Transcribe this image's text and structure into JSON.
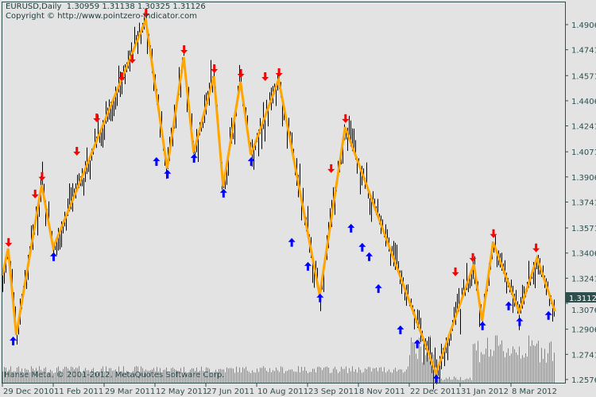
{
  "header": {
    "symbol_line": "EURUSD,Daily  1.30959 1.31138 1.30325 1.31126",
    "copyright_line": "Copyright © http://www.pointzero-indicator.com"
  },
  "footer": "Hanse Meta, © 2001-2012, MetaQuotes Software Corp.",
  "colors": {
    "background": "#e3e3e3",
    "axis": "#2f4f4f",
    "bars": "#000000",
    "zigzag": "#ffa500",
    "arrow_down": "#ff0000",
    "arrow_up": "#0000ff",
    "volume": "#778899",
    "price_box": "#2f4f4f"
  },
  "chart_data": {
    "type": "line",
    "title": "EURUSD,Daily",
    "last_bar": {
      "open": 1.30959,
      "high": 1.31138,
      "low": 1.30325,
      "close": 1.31126
    },
    "current_price_label": "1.31126",
    "y_ticks": [
      "1.49060",
      "1.47410",
      "1.45710",
      "1.44060",
      "1.42410",
      "1.40710",
      "1.39060",
      "1.37410",
      "1.35710",
      "1.34060",
      "1.32410",
      "1.30760",
      "1.29060",
      "1.27410",
      "1.25760"
    ],
    "x_ticks": [
      "29 Dec 2010",
      "11 Feb 2011",
      "29 Mar 2011",
      "12 May 2011",
      "27 Jun 2011",
      "10 Aug 2011",
      "23 Sep 2011",
      "8 Nov 2011",
      "22 Dec 2011",
      "31 Jan 2012",
      "8 Mar 2012"
    ],
    "ylim": [
      1.2576,
      1.506
    ],
    "grid": false,
    "zigzag": [
      [
        "2010-12-29",
        1.3259
      ],
      [
        "2011-01-03",
        1.3436
      ],
      [
        "2011-01-10",
        1.2868
      ],
      [
        "2011-02-01",
        1.3853
      ],
      [
        "2011-02-11",
        1.3441
      ],
      [
        "2011-05-04",
        1.4937
      ],
      [
        "2011-05-23",
        1.3962
      ],
      [
        "2011-06-07",
        1.4692
      ],
      [
        "2011-06-16",
        1.4067
      ],
      [
        "2011-07-04",
        1.4567
      ],
      [
        "2011-07-12",
        1.3843
      ],
      [
        "2011-07-27",
        1.4531
      ],
      [
        "2011-08-05",
        1.4051
      ],
      [
        "2011-08-29",
        1.4546
      ],
      [
        "2011-10-04",
        1.3128
      ],
      [
        "2011-10-27",
        1.4233
      ],
      [
        "2012-01-12",
        1.2617
      ],
      [
        "2012-02-10",
        1.3332
      ],
      [
        "2012-02-16",
        1.2961
      ],
      [
        "2012-02-24",
        1.3478
      ],
      [
        "2012-03-14",
        1.3019
      ],
      [
        "2012-03-27",
        1.3374
      ],
      [
        "2012-04-09",
        1.3024
      ]
    ],
    "down_arrows": [
      [
        "2011-01-03",
        1.3447
      ],
      [
        "2011-01-26",
        1.3765
      ],
      [
        "2011-02-01",
        1.388
      ],
      [
        "2011-03-04",
        1.4046
      ],
      [
        "2011-03-22",
        1.4265
      ],
      [
        "2011-04-13",
        1.4536
      ],
      [
        "2011-04-22",
        1.4651
      ],
      [
        "2011-05-04",
        1.4953
      ],
      [
        "2011-06-07",
        1.4713
      ],
      [
        "2011-07-04",
        1.4588
      ],
      [
        "2011-07-27",
        1.4557
      ],
      [
        "2011-08-17",
        1.4536
      ],
      [
        "2011-08-29",
        1.4562
      ],
      [
        "2011-10-14",
        1.3932
      ],
      [
        "2011-10-27",
        1.426
      ],
      [
        "2012-01-27",
        1.3254
      ],
      [
        "2012-02-09",
        1.3348
      ],
      [
        "2012-02-24",
        1.3505
      ],
      [
        "2012-03-26",
        1.3411
      ]
    ],
    "up_arrows": [
      [
        "2011-01-07",
        1.2858
      ],
      [
        "2011-02-11",
        1.3411
      ],
      [
        "2011-05-13",
        1.4036
      ],
      [
        "2011-05-23",
        1.3953
      ],
      [
        "2011-06-16",
        1.4057
      ],
      [
        "2011-07-12",
        1.3828
      ],
      [
        "2011-08-05",
        1.4036
      ],
      [
        "2011-09-09",
        1.3505
      ],
      [
        "2011-09-23",
        1.3348
      ],
      [
        "2011-10-04",
        1.314
      ],
      [
        "2011-11-01",
        1.3598
      ],
      [
        "2011-11-11",
        1.3473
      ],
      [
        "2011-11-17",
        1.3411
      ],
      [
        "2011-11-25",
        1.3202
      ],
      [
        "2011-12-14",
        1.2931
      ],
      [
        "2011-12-28",
        1.2838
      ],
      [
        "2012-01-12",
        1.2608
      ],
      [
        "2012-02-16",
        1.2957
      ],
      [
        "2012-03-06",
        1.3088
      ],
      [
        "2012-03-14",
        1.2984
      ],
      [
        "2012-04-04",
        1.3025
      ]
    ]
  }
}
